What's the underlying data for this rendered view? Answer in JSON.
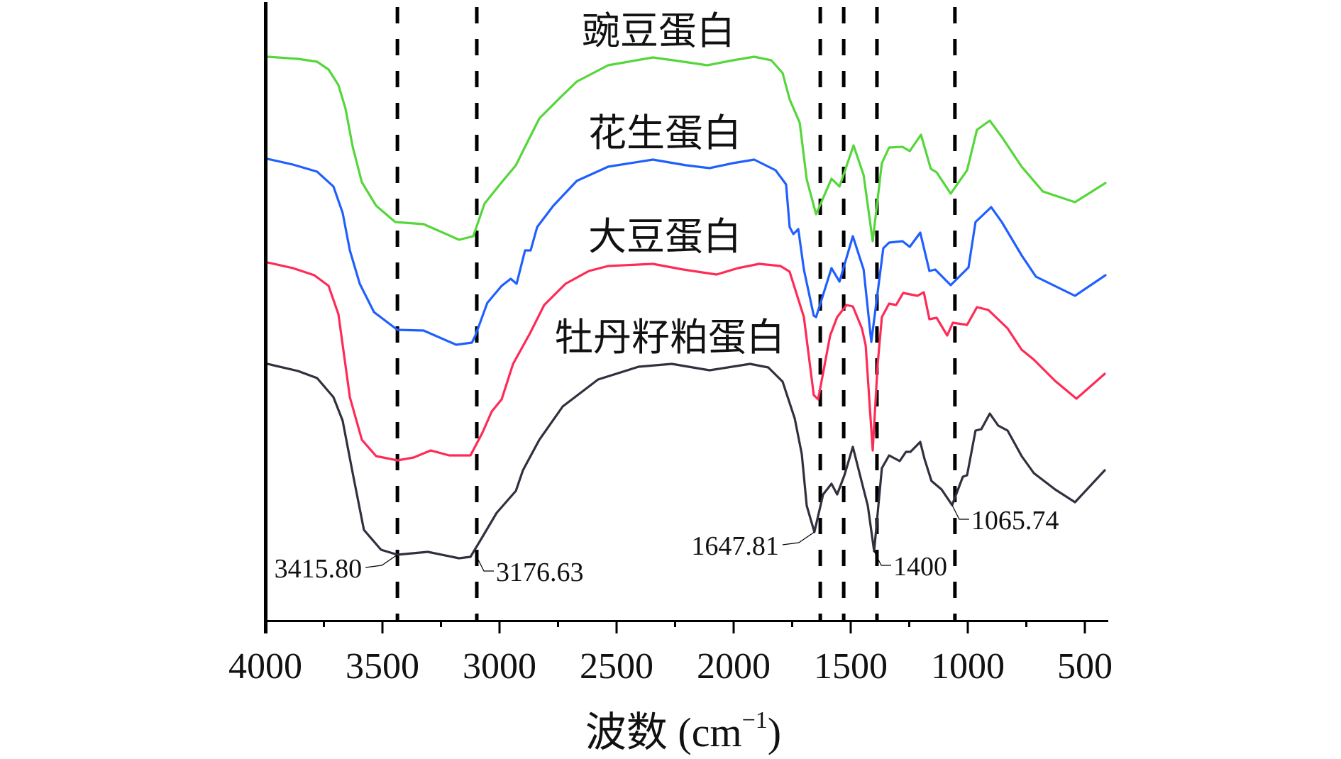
{
  "chart_data": {
    "type": "line",
    "title": "",
    "xlabel": "波数 (cm",
    "xlabel_superscript": "−1",
    "xlabel_close": ")",
    "ylabel": "",
    "xlim": [
      4000,
      400
    ],
    "ylim": [
      0,
      87
    ],
    "x_reversed": true,
    "grid": false,
    "legend": "inline-labels",
    "x_ticks": [
      4000,
      3500,
      3000,
      2500,
      2000,
      1500,
      1000,
      500
    ],
    "x_tick_labels": [
      "4000",
      "3500",
      "3000",
      "2500",
      "2000",
      "1500",
      "1000",
      "500"
    ],
    "x_minor_ticks": [
      3750,
      3250,
      2750,
      2250,
      1750,
      1250,
      750
    ],
    "reference_lines": [
      3436,
      3097,
      1630,
      1530,
      1388,
      1055
    ],
    "series": [
      {
        "name": "豌豆蛋白",
        "color": "#55d63a",
        "x": [
          3991,
          3861,
          3779,
          3730,
          3688,
          3658,
          3627,
          3588,
          3527,
          3445,
          3324,
          3173,
          3112,
          3064,
          2991,
          2930,
          2891,
          2830,
          2739,
          2670,
          2536,
          2345,
          2215,
          2112,
          2003,
          1912,
          1839,
          1791,
          1761,
          1718,
          1688,
          1648,
          1582,
          1548,
          1488,
          1445,
          1406,
          1367,
          1336,
          1279,
          1248,
          1200,
          1158,
          1133,
          1073,
          1003,
          961,
          906,
          855,
          770,
          679,
          542,
          412
        ],
        "y": [
          79.5,
          79.2,
          78.8,
          77.7,
          75.5,
          72.2,
          66.8,
          61.8,
          58.5,
          56.2,
          55.9,
          53.7,
          54.2,
          58.8,
          61.8,
          64.2,
          66.8,
          70.8,
          73.8,
          76.0,
          78.3,
          79.4,
          78.8,
          78.3,
          79.0,
          79.5,
          79.0,
          77.2,
          73.5,
          70.2,
          62.2,
          57.3,
          62.3,
          61.2,
          67.0,
          62.8,
          53.5,
          64.5,
          66.7,
          66.8,
          66.2,
          68.5,
          63.7,
          63.2,
          60.2,
          63.5,
          69.2,
          70.5,
          68.2,
          64.0,
          60.5,
          59.0,
          61.7
        ]
      },
      {
        "name": "花生蛋白",
        "color": "#1f5fff",
        "x": [
          3991,
          3882,
          3779,
          3709,
          3670,
          3639,
          3597,
          3536,
          3436,
          3324,
          3185,
          3118,
          3103,
          3052,
          2991,
          2952,
          2927,
          2891,
          2867,
          2839,
          2770,
          2670,
          2536,
          2345,
          2203,
          2103,
          2003,
          1912,
          1821,
          1776,
          1761,
          1745,
          1724,
          1700,
          1658,
          1648,
          1582,
          1548,
          1491,
          1445,
          1412,
          1361,
          1336,
          1279,
          1248,
          1203,
          1164,
          1139,
          1073,
          997,
          967,
          900,
          855,
          770,
          709,
          542,
          412
        ],
        "y": [
          65.1,
          64.3,
          63.3,
          61.2,
          57.5,
          52.2,
          47.5,
          43.5,
          41.0,
          40.9,
          38.9,
          39.2,
          40.2,
          44.8,
          47.2,
          48.2,
          47.5,
          52.2,
          52.2,
          55.5,
          58.5,
          62.0,
          64.0,
          65.0,
          64.2,
          63.8,
          64.5,
          65.0,
          63.5,
          61.5,
          55.5,
          54.5,
          55.2,
          49.5,
          43.0,
          42.8,
          49.7,
          47.8,
          54.2,
          49.5,
          39.3,
          52.5,
          53.3,
          53.5,
          52.7,
          54.7,
          49.3,
          49.5,
          47.3,
          49.8,
          56.2,
          58.3,
          56.2,
          51.5,
          48.5,
          45.8,
          48.7
        ]
      },
      {
        "name": "大豆蛋白",
        "color": "#ff2a55",
        "x": [
          3991,
          3882,
          3791,
          3730,
          3688,
          3639,
          3588,
          3527,
          3436,
          3367,
          3294,
          3215,
          3124,
          3073,
          3033,
          2991,
          2942,
          2870,
          2809,
          2718,
          2618,
          2536,
          2345,
          2215,
          2073,
          1982,
          1891,
          1800,
          1761,
          1700,
          1658,
          1639,
          1588,
          1558,
          1518,
          1491,
          1452,
          1436,
          1406,
          1385,
          1367,
          1336,
          1306,
          1276,
          1215,
          1188,
          1164,
          1133,
          1088,
          1064,
          1003,
          961,
          912,
          830,
          770,
          718,
          627,
          536,
          415
        ],
        "y": [
          50.5,
          49.7,
          48.7,
          47.2,
          43.2,
          31.5,
          25.5,
          23.2,
          22.6,
          23.0,
          24.0,
          23.3,
          23.3,
          26.5,
          29.5,
          31.2,
          36.2,
          40.5,
          44.5,
          47.5,
          49.3,
          50.0,
          50.3,
          49.5,
          48.8,
          49.7,
          50.3,
          50.0,
          49.2,
          42.8,
          31.8,
          31.2,
          40.2,
          42.8,
          44.5,
          44.3,
          41.2,
          38.8,
          24.0,
          36.2,
          42.8,
          44.7,
          44.5,
          46.2,
          45.8,
          46.3,
          42.5,
          42.7,
          40.2,
          42.0,
          41.7,
          44.2,
          43.8,
          41.2,
          38.2,
          36.8,
          33.8,
          31.3,
          34.8
        ]
      },
      {
        "name": "牡丹籽粕蛋白",
        "color": "#30303f",
        "x": [
          3991,
          3861,
          3779,
          3709,
          3670,
          3627,
          3579,
          3506,
          3436,
          3306,
          3173,
          3124,
          3073,
          3012,
          2930,
          2900,
          2830,
          2730,
          2579,
          2406,
          2264,
          2103,
          1930,
          1852,
          1791,
          1739,
          1709,
          1688,
          1655,
          1618,
          1582,
          1558,
          1527,
          1491,
          1458,
          1427,
          1400,
          1367,
          1336,
          1291,
          1264,
          1245,
          1203,
          1185,
          1155,
          1112,
          1067,
          1021,
          1003,
          967,
          942,
          906,
          870,
          830,
          770,
          718,
          627,
          542,
          415
        ],
        "y": [
          36.2,
          35.2,
          34.2,
          31.5,
          28.2,
          20.8,
          12.8,
          10.0,
          9.3,
          9.7,
          8.8,
          9.0,
          11.8,
          15.2,
          18.3,
          21.2,
          25.5,
          30.2,
          34.0,
          35.8,
          36.2,
          35.3,
          36.2,
          35.7,
          33.7,
          28.5,
          23.5,
          16.2,
          12.5,
          17.8,
          19.3,
          17.8,
          20.5,
          24.5,
          20.2,
          16.2,
          9.8,
          21.5,
          23.3,
          22.5,
          23.8,
          23.8,
          25.2,
          22.8,
          19.7,
          18.5,
          16.3,
          20.3,
          20.5,
          26.8,
          27.0,
          29.2,
          27.5,
          26.8,
          23.2,
          20.8,
          18.5,
          16.7,
          21.2
        ]
      }
    ],
    "annotations": [
      {
        "text": "3415.80",
        "x": 3436,
        "y": 9.3,
        "side": "left"
      },
      {
        "text": "3176.63",
        "x": 3097,
        "y": 9.0,
        "side": "right"
      },
      {
        "text": "1647.81",
        "x": 1655,
        "y": 12.5,
        "side": "left"
      },
      {
        "text": "1400",
        "x": 1400,
        "y": 9.8,
        "side": "right"
      },
      {
        "text": "1065.74",
        "x": 1067,
        "y": 16.3,
        "side": "right"
      }
    ]
  }
}
